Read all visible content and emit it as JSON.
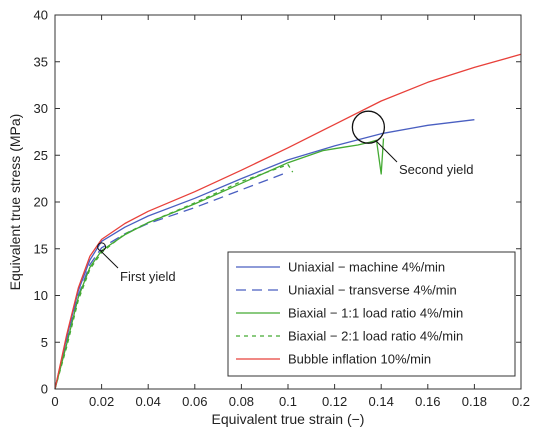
{
  "chart_data": {
    "type": "line",
    "title": "",
    "xlabel": "Equivalent true strain (−)",
    "ylabel": "Equivalent true stress (MPa)",
    "xlim": [
      0,
      0.2
    ],
    "ylim": [
      0,
      40
    ],
    "xticks": [
      0,
      0.02,
      0.04,
      0.06,
      0.08,
      0.1,
      0.12,
      0.14,
      0.16,
      0.18,
      0.2
    ],
    "xtick_labels": [
      "0",
      "0.02",
      "0.04",
      "0.06",
      "0.08",
      "0.1",
      "0.12",
      "0.14",
      "0.16",
      "0.18",
      "0.2"
    ],
    "yticks": [
      0,
      5,
      10,
      15,
      20,
      25,
      30,
      35,
      40
    ],
    "ytick_labels": [
      "0",
      "5",
      "10",
      "15",
      "20",
      "25",
      "30",
      "35",
      "40"
    ],
    "grid": false,
    "legend_position": "bottom-right",
    "series": [
      {
        "name": "Uniaxial − machine 4%/min",
        "color": "#4a5fc1",
        "dash": "solid",
        "x": [
          0,
          0.005,
          0.01,
          0.015,
          0.02,
          0.03,
          0.04,
          0.06,
          0.08,
          0.1,
          0.12,
          0.14,
          0.16,
          0.18
        ],
        "y": [
          0,
          5.5,
          10.5,
          13.8,
          15.8,
          17.3,
          18.5,
          20.4,
          22.5,
          24.5,
          26.0,
          27.3,
          28.2,
          28.8
        ]
      },
      {
        "name": "Uniaxial − transverse 4%/min",
        "color": "#4a5fc1",
        "dash": "dashed",
        "x": [
          0,
          0.005,
          0.01,
          0.015,
          0.02,
          0.03,
          0.04,
          0.06,
          0.08,
          0.1
        ],
        "y": [
          0,
          5,
          10,
          13.3,
          15.1,
          16.6,
          17.7,
          19.4,
          21.3,
          23.2
        ]
      },
      {
        "name": "Biaxial − 1:1 load ratio 4%/min",
        "color": "#44aa33",
        "dash": "solid",
        "x": [
          0,
          0.005,
          0.01,
          0.015,
          0.02,
          0.03,
          0.04,
          0.06,
          0.08,
          0.1,
          0.115,
          0.12,
          0.125,
          0.13,
          0.135,
          0.138,
          0.14,
          0.141
        ],
        "y": [
          0,
          4.8,
          9.8,
          13.0,
          14.8,
          16.5,
          17.8,
          19.8,
          22.0,
          24.2,
          25.5,
          25.7,
          25.9,
          26.1,
          26.4,
          26.6,
          23.0,
          26.8
        ]
      },
      {
        "name": "Biaxial − 2:1 load ratio 4%/min",
        "color": "#44aa33",
        "dash": "dotted",
        "x": [
          0,
          0.005,
          0.01,
          0.015,
          0.02,
          0.03,
          0.04,
          0.06,
          0.08,
          0.1,
          0.102
        ],
        "y": [
          0,
          4.5,
          9.5,
          12.8,
          14.6,
          16.6,
          17.8,
          19.9,
          22.2,
          24.0,
          23.2
        ]
      },
      {
        "name": "Bubble inflation 10%/min",
        "color": "#e8403a",
        "dash": "solid",
        "x": [
          0,
          0.005,
          0.01,
          0.015,
          0.02,
          0.03,
          0.04,
          0.06,
          0.08,
          0.1,
          0.12,
          0.14,
          0.16,
          0.18,
          0.2
        ],
        "y": [
          0,
          5.8,
          10.8,
          14.2,
          16.0,
          17.7,
          19.0,
          21.1,
          23.4,
          25.8,
          28.3,
          30.8,
          32.8,
          34.4,
          35.8
        ]
      }
    ],
    "annotations": [
      {
        "text": "First yield",
        "circle_x": 0.02,
        "circle_y": 15.2,
        "circle": "small"
      },
      {
        "text": "Second yield",
        "circle_x": 0.1345,
        "circle_y": 28.0,
        "circle": "large"
      }
    ]
  }
}
